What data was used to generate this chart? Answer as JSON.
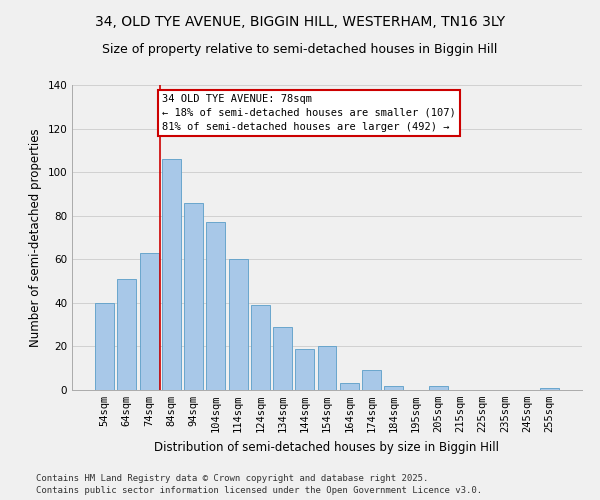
{
  "title": "34, OLD TYE AVENUE, BIGGIN HILL, WESTERHAM, TN16 3LY",
  "subtitle": "Size of property relative to semi-detached houses in Biggin Hill",
  "xlabel": "Distribution of semi-detached houses by size in Biggin Hill",
  "ylabel": "Number of semi-detached properties",
  "categories": [
    "54sqm",
    "64sqm",
    "74sqm",
    "84sqm",
    "94sqm",
    "104sqm",
    "114sqm",
    "124sqm",
    "134sqm",
    "144sqm",
    "154sqm",
    "164sqm",
    "174sqm",
    "184sqm",
    "195sqm",
    "205sqm",
    "215sqm",
    "225sqm",
    "235sqm",
    "245sqm",
    "255sqm"
  ],
  "values": [
    40,
    51,
    63,
    106,
    86,
    77,
    60,
    39,
    29,
    19,
    20,
    3,
    9,
    2,
    0,
    2,
    0,
    0,
    0,
    0,
    1
  ],
  "bar_color": "#a8c8e8",
  "bar_edge_color": "#5a9ec8",
  "grid_color": "#cccccc",
  "background_color": "#f0f0f0",
  "annotation_box_text": "34 OLD TYE AVENUE: 78sqm\n← 18% of semi-detached houses are smaller (107)\n81% of semi-detached houses are larger (492) →",
  "annotation_box_color": "#ffffff",
  "annotation_box_edge_color": "#cc0000",
  "annotation_line_color": "#cc0000",
  "ylim": [
    0,
    140
  ],
  "yticks": [
    0,
    20,
    40,
    60,
    80,
    100,
    120,
    140
  ],
  "footer_line1": "Contains HM Land Registry data © Crown copyright and database right 2025.",
  "footer_line2": "Contains public sector information licensed under the Open Government Licence v3.0.",
  "title_fontsize": 10,
  "subtitle_fontsize": 9,
  "axis_label_fontsize": 8.5,
  "tick_fontsize": 7.5,
  "annotation_fontsize": 7.5,
  "footer_fontsize": 6.5
}
